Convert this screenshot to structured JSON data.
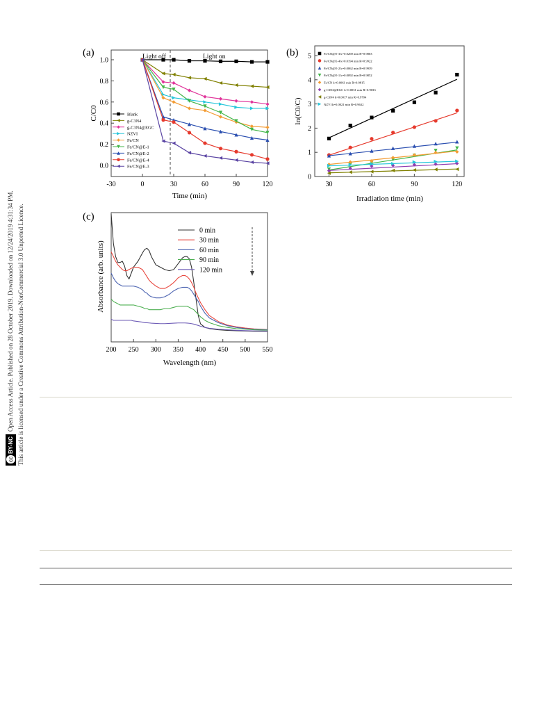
{
  "sidebar": {
    "line1": "Open Access Article. Published on 28 October 2019. Downloaded on 12/24/2019 4:31:34 PM.",
    "line2": "This article is licensed under a Creative Commons Attribution-NonCommercial 3.0 Unported Licence.",
    "badge": "BY-NC",
    "badge_cc": "cc"
  },
  "chart_data": [
    {
      "panel": "(a)",
      "type": "line",
      "xlabel": "Time (min)",
      "ylabel": "C/C0",
      "xlim": [
        -30,
        120
      ],
      "ylim": [
        0.0,
        1.0
      ],
      "xticks": [
        "-30",
        "0",
        "30",
        "60",
        "90",
        "120"
      ],
      "yticks": [
        "0.0",
        "0.2",
        "0.4",
        "0.6",
        "0.8",
        "1.0"
      ],
      "annotations": [
        "Light off",
        "Light on"
      ],
      "legend_position": "left",
      "x": [
        0,
        20,
        30,
        45,
        60,
        75,
        90,
        105,
        120
      ],
      "series": [
        {
          "name": "Blank",
          "color": "#000000",
          "marker": "square",
          "values": [
            1.0,
            1.0,
            1.0,
            0.99,
            0.99,
            0.985,
            0.985,
            0.98,
            0.98
          ]
        },
        {
          "name": "g-C3N4",
          "color": "#808000",
          "marker": "tri-left",
          "values": [
            1.0,
            0.87,
            0.86,
            0.83,
            0.82,
            0.78,
            0.76,
            0.75,
            0.74
          ]
        },
        {
          "name": "g-C3N4@EGC",
          "color": "#e0349a",
          "marker": "diamond",
          "values": [
            1.0,
            0.79,
            0.78,
            0.71,
            0.65,
            0.63,
            0.61,
            0.6,
            0.58
          ]
        },
        {
          "name": "NZVI",
          "color": "#26c6da",
          "marker": "tri-right",
          "values": [
            1.0,
            0.67,
            0.64,
            0.62,
            0.6,
            0.58,
            0.55,
            0.54,
            0.54
          ]
        },
        {
          "name": "Fe/CN",
          "color": "#f39c34",
          "marker": "diamond",
          "values": [
            1.0,
            0.64,
            0.6,
            0.54,
            0.52,
            0.46,
            0.41,
            0.37,
            0.36
          ]
        },
        {
          "name": "Fe/CN@E-1",
          "color": "#43b649",
          "marker": "tri-down",
          "values": [
            1.0,
            0.74,
            0.72,
            0.61,
            0.56,
            0.5,
            0.42,
            0.34,
            0.31
          ]
        },
        {
          "name": "Fe/CN@E-2",
          "color": "#2b4fb0",
          "marker": "tri-up",
          "values": [
            1.0,
            0.46,
            0.43,
            0.39,
            0.35,
            0.32,
            0.29,
            0.26,
            0.24
          ]
        },
        {
          "name": "Fe/CN@E-4",
          "color": "#e63a2d",
          "marker": "circle",
          "values": [
            1.0,
            0.43,
            0.41,
            0.31,
            0.21,
            0.16,
            0.13,
            0.1,
            0.06
          ]
        },
        {
          "name": "Fe/CN@E-3",
          "color": "#5a44a3",
          "marker": "tri-left",
          "values": [
            1.0,
            0.23,
            0.21,
            0.12,
            0.09,
            0.07,
            0.05,
            0.03,
            0.02
          ]
        }
      ]
    },
    {
      "panel": "(b)",
      "type": "scatter",
      "xlabel": "Irradiation time (min)",
      "ylabel": "ln(C0/C)",
      "xlim": [
        20,
        125
      ],
      "ylim": [
        0,
        5
      ],
      "xticks": [
        "30",
        "60",
        "90",
        "120"
      ],
      "yticks": [
        "0",
        "1",
        "2",
        "3",
        "4",
        "5"
      ],
      "legend_position": "top-left",
      "x": [
        30,
        45,
        60,
        75,
        90,
        105,
        120
      ],
      "series": [
        {
          "name": "Fe/CN@E-3 k = 0.0269 min-1 R2 = 0.9803",
          "label_k": "Fe/CN@E-3 k",
          "label_rest": "=0.0269 min",
          "r2": "=0.9803",
          "color": "#000000",
          "marker": "square",
          "values": [
            1.57,
            2.11,
            2.44,
            2.72,
            3.07,
            3.47,
            4.21
          ],
          "fit": [
            1.6,
            4.02
          ]
        },
        {
          "name": "Fe/CN@E-4 k = 0.0194 min-1 R2 = 0.9922",
          "label_k": "Fe/CN@E-4 k",
          "label_rest": "=0.0194 min",
          "r2": "=0.9922",
          "color": "#e63a2d",
          "marker": "circle",
          "values": [
            0.89,
            1.2,
            1.56,
            1.82,
            2.04,
            2.3,
            2.73
          ],
          "fit": [
            0.88,
            2.63
          ]
        },
        {
          "name": "Fe/CN@E-2 k = 0.0062 min-1 R2 = 0.9939",
          "label_k": "Fe/CN@E-2 k",
          "label_rest": "=0.0062 min",
          "r2": "=0.9939",
          "color": "#2b4fb0",
          "marker": "tri-up",
          "values": [
            0.86,
            0.95,
            1.06,
            1.17,
            1.26,
            1.36,
            1.44
          ],
          "fit": [
            0.86,
            1.42
          ]
        },
        {
          "name": "Fe/CN@E-1 k = 0.0092 min-1 R2 = 0.9852",
          "label_k": "Fe/CN@E-1 k",
          "label_rest": "=0.0092 min",
          "r2": "=0.9852",
          "color": "#43b649",
          "marker": "tri-down",
          "values": [
            0.3,
            0.51,
            0.58,
            0.7,
            0.87,
            1.07,
            1.17
          ],
          "fit": [
            0.27,
            1.1
          ]
        },
        {
          "name": "Fe/CN k = 0.0061 min-1 R2 = 0.9815",
          "label_k": "Fe/CN k",
          "label_rest": "=0.0061 min",
          "r2": "=0.9815",
          "color": "#f39c34",
          "marker": "diamond",
          "values": [
            0.5,
            0.6,
            0.64,
            0.78,
            0.89,
            0.99,
            1.02
          ],
          "fit": [
            0.5,
            1.05
          ]
        },
        {
          "name": "g-C3N4@EGC k = 0.0031 min-1 R2 = 0.9033",
          "label_k": "g-C3N4@EGC k",
          "label_rest": "=0.0031 min",
          "r2": "=0.9033",
          "color": "#8e3cb0",
          "marker": "diamond",
          "values": [
            0.24,
            0.34,
            0.43,
            0.46,
            0.49,
            0.51,
            0.54
          ],
          "fit": [
            0.25,
            0.53
          ]
        },
        {
          "name": "g-C3N4 k = 0.0017 min-1 R2 = 0.9704",
          "label_k": "g-C3N4 k",
          "label_rest": "=0.0017 min",
          "r2": "=0.9704",
          "color": "#808000",
          "marker": "tri-left",
          "values": [
            0.14,
            0.18,
            0.2,
            0.25,
            0.27,
            0.29,
            0.3
          ],
          "fit": [
            0.15,
            0.31
          ]
        },
        {
          "name": "NZVI k = 0.0021 min-1 R2 = 0.9632",
          "label_k": "NZVI k",
          "label_rest": "=0.0021 min",
          "r2": "=0.9632",
          "color": "#26c6da",
          "marker": "tri-right",
          "values": [
            0.45,
            0.48,
            0.52,
            0.53,
            0.6,
            0.62,
            0.63
          ],
          "fit": [
            0.44,
            0.63
          ]
        }
      ]
    },
    {
      "panel": "(c)",
      "type": "line",
      "xlabel": "Wavelength (nm)",
      "ylabel": "Absorbance (arb. units)",
      "xlim": [
        200,
        550
      ],
      "xticks": [
        "200",
        "250",
        "300",
        "350",
        "400",
        "450",
        "500",
        "550"
      ],
      "legend_position": "top-right",
      "x": [
        200,
        205,
        210,
        215,
        220,
        225,
        230,
        235,
        240,
        245,
        250,
        260,
        270,
        275,
        280,
        285,
        290,
        300,
        310,
        320,
        330,
        340,
        350,
        360,
        365,
        370,
        375,
        380,
        385,
        390,
        395,
        400,
        410,
        420,
        440,
        460,
        480,
        500,
        520,
        550
      ],
      "series": [
        {
          "name": "0 min",
          "color": "#333333",
          "values": [
            1.0,
            0.75,
            0.64,
            0.59,
            0.59,
            0.6,
            0.56,
            0.48,
            0.45,
            0.5,
            0.55,
            0.6,
            0.67,
            0.7,
            0.71,
            0.69,
            0.64,
            0.57,
            0.55,
            0.53,
            0.52,
            0.53,
            0.58,
            0.63,
            0.64,
            0.64,
            0.62,
            0.55,
            0.42,
            0.28,
            0.14,
            0.07,
            0.04,
            0.03,
            0.02,
            0.015,
            0.012,
            0.01,
            0.008,
            0.007
          ]
        },
        {
          "name": "30 min",
          "color": "#e8473e",
          "values": [
            0.68,
            0.64,
            0.6,
            0.57,
            0.55,
            0.53,
            0.52,
            0.52,
            0.53,
            0.54,
            0.55,
            0.55,
            0.53,
            0.5,
            0.47,
            0.44,
            0.42,
            0.39,
            0.37,
            0.37,
            0.39,
            0.42,
            0.46,
            0.48,
            0.48,
            0.47,
            0.45,
            0.42,
            0.38,
            0.33,
            0.29,
            0.25,
            0.19,
            0.14,
            0.09,
            0.06,
            0.045,
            0.035,
            0.028,
            0.022
          ]
        },
        {
          "name": "60 min",
          "color": "#4a62b0",
          "values": [
            0.5,
            0.46,
            0.43,
            0.41,
            0.4,
            0.39,
            0.39,
            0.39,
            0.39,
            0.39,
            0.39,
            0.38,
            0.36,
            0.34,
            0.33,
            0.31,
            0.3,
            0.29,
            0.29,
            0.3,
            0.32,
            0.35,
            0.37,
            0.38,
            0.38,
            0.38,
            0.37,
            0.35,
            0.32,
            0.29,
            0.26,
            0.22,
            0.16,
            0.12,
            0.08,
            0.055,
            0.04,
            0.03,
            0.025,
            0.02
          ]
        },
        {
          "name": "90 min",
          "color": "#4caf50",
          "values": [
            0.28,
            0.26,
            0.25,
            0.24,
            0.23,
            0.23,
            0.23,
            0.23,
            0.23,
            0.23,
            0.23,
            0.22,
            0.21,
            0.2,
            0.2,
            0.19,
            0.19,
            0.19,
            0.19,
            0.2,
            0.2,
            0.21,
            0.22,
            0.22,
            0.22,
            0.22,
            0.21,
            0.2,
            0.19,
            0.17,
            0.15,
            0.13,
            0.1,
            0.08,
            0.055,
            0.04,
            0.03,
            0.025,
            0.02,
            0.017
          ]
        },
        {
          "name": "120 min",
          "color": "#6d5bb6",
          "values": [
            0.11,
            0.1,
            0.1,
            0.1,
            0.1,
            0.1,
            0.1,
            0.1,
            0.1,
            0.1,
            0.095,
            0.09,
            0.085,
            0.08,
            0.08,
            0.078,
            0.076,
            0.074,
            0.072,
            0.072,
            0.074,
            0.076,
            0.078,
            0.078,
            0.078,
            0.077,
            0.075,
            0.072,
            0.068,
            0.062,
            0.057,
            0.05,
            0.04,
            0.033,
            0.025,
            0.02,
            0.016,
            0.013,
            0.011,
            0.01
          ]
        }
      ]
    }
  ]
}
